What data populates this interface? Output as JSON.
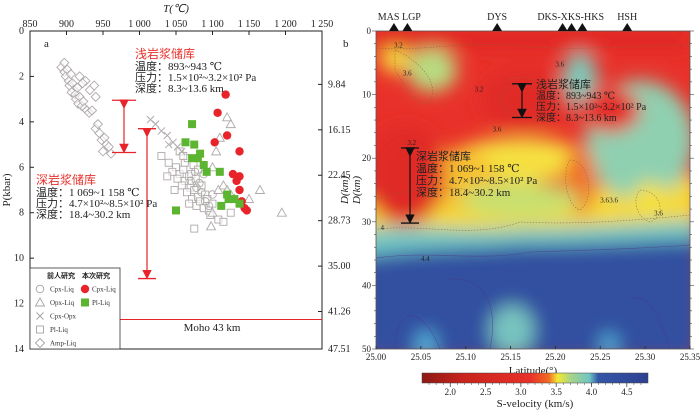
{
  "chart_data": [
    {
      "panel": "a",
      "type": "scatter",
      "title": "",
      "xlabel": "T(℃)",
      "ylabel": "P(kbar)",
      "y2label": "D(km)",
      "xlim": [
        850,
        1250
      ],
      "ylim": [
        0,
        14
      ],
      "x_ticks": [
        "850",
        "900",
        "950",
        "1 000",
        "1 050",
        "1 100",
        "1 150",
        "1 200",
        "1 250"
      ],
      "x_tick_values": [
        850,
        900,
        950,
        1000,
        1050,
        1100,
        1150,
        1200,
        1250
      ],
      "y_ticks": [
        "0",
        "2",
        "4",
        "6",
        "8",
        "10",
        "12",
        "14"
      ],
      "y_tick_values": [
        0,
        2,
        4,
        6,
        8,
        10,
        12,
        14
      ],
      "y2_ticks": [
        "9.84",
        "16.15",
        "22.45",
        "28.73",
        "35.00",
        "41.26",
        "47.51"
      ],
      "y2_tick_values": [
        3,
        5,
        7,
        9,
        11,
        13,
        15
      ],
      "series": [
        {
          "name": "Amp-Liq",
          "group": "前人研究",
          "marker": "diamond",
          "color": "#b0aaaa",
          "points": [
            [
              893,
              1.6
            ],
            [
              897,
              1.8
            ],
            [
              901,
              1.7
            ],
            [
              899,
              2.0
            ],
            [
              903,
              2.2
            ],
            [
              906,
              1.9
            ],
            [
              904,
              2.4
            ],
            [
              908,
              2.3
            ],
            [
              910,
              2.6
            ],
            [
              907,
              2.7
            ],
            [
              912,
              2.8
            ],
            [
              915,
              2.5
            ],
            [
              913,
              3.0
            ],
            [
              918,
              2.9
            ],
            [
              916,
              3.2
            ],
            [
              921,
              3.3
            ],
            [
              923,
              3.1
            ],
            [
              925,
              3.4
            ],
            [
              928,
              3.5
            ],
            [
              931,
              3.6
            ],
            [
              935,
              3.5
            ],
            [
              926,
              2.2
            ],
            [
              932,
              2.6
            ],
            [
              938,
              2.4
            ],
            [
              940,
              2.9
            ],
            [
              918,
              2.0
            ],
            [
              922,
              2.3
            ],
            [
              897,
              1.4
            ],
            [
              940,
              4.3
            ],
            [
              945,
              4.5
            ],
            [
              948,
              4.8
            ],
            [
              952,
              4.7
            ],
            [
              955,
              5.0
            ],
            [
              958,
              5.1
            ],
            [
              950,
              5.3
            ],
            [
              961,
              5.4
            ],
            [
              943,
              4.1
            ]
          ]
        },
        {
          "name": "Pl-Liq",
          "group": "前人研究",
          "marker": "square",
          "color": "#b0aaaa",
          "points": [
            [
              1030,
              5.5
            ],
            [
              1040,
              5.8
            ],
            [
              1050,
              6.0
            ],
            [
              1055,
              6.3
            ],
            [
              1060,
              6.1
            ],
            [
              1062,
              6.6
            ],
            [
              1068,
              6.4
            ],
            [
              1070,
              6.9
            ],
            [
              1058,
              6.8
            ],
            [
              1052,
              6.5
            ],
            [
              1045,
              6.2
            ],
            [
              1065,
              7.1
            ],
            [
              1075,
              7.0
            ],
            [
              1072,
              7.4
            ],
            [
              1080,
              7.3
            ],
            [
              1078,
              7.7
            ],
            [
              1083,
              7.5
            ],
            [
              1068,
              7.6
            ],
            [
              1062,
              5.8
            ],
            [
              1066,
              5.6
            ],
            [
              1074,
              5.9
            ],
            [
              1080,
              6.1
            ],
            [
              1085,
              6.8
            ],
            [
              1090,
              7.2
            ],
            [
              1088,
              7.8
            ],
            [
              1095,
              7.9
            ],
            [
              1093,
              7.4
            ],
            [
              1055,
              5.3
            ],
            [
              1060,
              5.5
            ],
            [
              1071,
              6.3
            ],
            [
              1077,
              6.5
            ],
            [
              1097,
              8.1
            ],
            [
              1100,
              7.6
            ],
            [
              1108,
              8.3
            ],
            [
              1115,
              8.4
            ],
            [
              1125,
              8.0
            ],
            [
              1038,
              6.4
            ],
            [
              1048,
              7.0
            ],
            [
              1075,
              8.7
            ]
          ]
        },
        {
          "name": "Cpx-Liq",
          "group": "前人研究",
          "marker": "circle",
          "color": "#b0aaaa",
          "points": [
            [
              1070,
              6.6
            ],
            [
              1078,
              6.9
            ],
            [
              1085,
              7.1
            ],
            [
              1090,
              7.5
            ],
            [
              1095,
              7.7
            ],
            [
              1082,
              6.7
            ],
            [
              1088,
              6.3
            ],
            [
              1100,
              7.2
            ],
            [
              1076,
              6.2
            ]
          ]
        },
        {
          "name": "Opx-Liq",
          "group": "前人研究",
          "marker": "triangle",
          "color": "#b0aaaa",
          "points": [
            [
              1120,
              3.8
            ],
            [
              1125,
              4.1
            ],
            [
              1110,
              4.7
            ],
            [
              1105,
              5.3
            ],
            [
              1100,
              6.0
            ],
            [
              1115,
              6.8
            ],
            [
              1108,
              7.0
            ],
            [
              1120,
              7.0
            ],
            [
              1130,
              7.4
            ],
            [
              1140,
              7.6
            ],
            [
              1165,
              7.0
            ],
            [
              1150,
              7.4
            ],
            [
              1100,
              8.0
            ],
            [
              1098,
              8.6
            ],
            [
              1195,
              8.0
            ],
            [
              1125,
              7.2
            ]
          ]
        },
        {
          "name": "Cpx-Opx",
          "group": "前人研究",
          "marker": "cross",
          "color": "#b0aaaa",
          "points": [
            [
              1022,
              4.1
            ],
            [
              1030,
              4.4
            ],
            [
              1038,
              4.6
            ],
            [
              1046,
              4.9
            ],
            [
              1052,
              5.1
            ],
            [
              1040,
              5.0
            ],
            [
              1058,
              5.3
            ],
            [
              1015,
              3.9
            ]
          ]
        },
        {
          "name": "Cpx-Liq",
          "group": "本次研究",
          "marker": "circle-filled",
          "color": "#e8232a",
          "points": [
            [
              1118,
              2.8
            ],
            [
              1107,
              3.6
            ],
            [
              1120,
              4.6
            ],
            [
              1103,
              4.9
            ],
            [
              1137,
              5.3
            ],
            [
              1128,
              6.3
            ],
            [
              1137,
              6.4
            ],
            [
              1133,
              6.6
            ],
            [
              1137,
              7.0
            ],
            [
              1140,
              7.5
            ],
            [
              1144,
              7.8
            ],
            [
              1147,
              7.9
            ]
          ]
        },
        {
          "name": "Pl-Liq",
          "group": "本次研究",
          "marker": "square-filled",
          "color": "#5cb531",
          "points": [
            [
              1072,
              4.1
            ],
            [
              1063,
              4.9
            ],
            [
              1075,
              5.0
            ],
            [
              1072,
              5.6
            ],
            [
              1080,
              5.6
            ],
            [
              1083,
              5.4
            ],
            [
              1088,
              5.9
            ],
            [
              1092,
              6.2
            ],
            [
              1110,
              6.2
            ],
            [
              1120,
              7.2
            ],
            [
              1122,
              7.4
            ],
            [
              1130,
              7.4
            ],
            [
              1137,
              7.6
            ],
            [
              1050,
              7.9
            ],
            [
              1112,
              7.7
            ]
          ]
        }
      ],
      "annotations": {
        "panel_label": "a",
        "shallow": {
          "title": "浅岩浆储库",
          "temp": "温度：893~943 ℃",
          "pressure": "压力：1.5×10²~3.2×10² Pa",
          "depth": "深度：8.3~13.6 km",
          "p_range": [
            3.05,
            5.35
          ]
        },
        "deep": {
          "title": "深岩浆储库",
          "temp": "温度：1 069~1 158 ℃",
          "pressure": "压力：4.7×10²~8.5×10² Pa",
          "depth": "深度：18.4~30.2 km",
          "p_range": [
            4.3,
            10.9
          ]
        },
        "moho": {
          "label": "Moho 43 km",
          "p": 12.7
        }
      },
      "legend": {
        "placement": "bottom-left",
        "previous_header": "前人研究",
        "current_header": "本次研究",
        "previous": [
          "Cpx-Liq",
          "Opx-Liq",
          "Cpx-Opx",
          "Pl-Liq",
          "Amp-Liq"
        ],
        "current": [
          "Cpx-Liq",
          "Pl-Liq"
        ]
      }
    },
    {
      "panel": "b",
      "type": "heatmap",
      "title": "",
      "xlabel": "Latitude(°)",
      "ylabel": "D(km)",
      "xlim": [
        25.0,
        25.35
      ],
      "ylim": [
        0,
        50
      ],
      "x_ticks": [
        "25.00",
        "25.05",
        "25.10",
        "25.15",
        "25.20",
        "25.25",
        "25.30",
        "25.35"
      ],
      "x_tick_values": [
        25.0,
        25.05,
        25.1,
        25.15,
        25.2,
        25.25,
        25.3,
        25.35
      ],
      "y_ticks": [
        "0",
        "10",
        "20",
        "30",
        "40",
        "50"
      ],
      "y_tick_values": [
        0,
        10,
        20,
        30,
        40,
        50
      ],
      "stations": [
        {
          "label": "MAS",
          "lat": 25.02
        },
        {
          "label": "LGP",
          "lat": 25.035
        },
        {
          "label": "DYS",
          "lat": 25.135
        },
        {
          "label": "DKS",
          "lat": 25.208
        },
        {
          "label": "XKS",
          "lat": 25.218
        },
        {
          "label": "HKS",
          "lat": 25.23
        },
        {
          "label": "HSH",
          "lat": 25.28
        }
      ],
      "station_labels": [
        "MAS LGP",
        "DYS",
        "DKS-XKS-HKS",
        "HSH"
      ],
      "contour_labels": [
        "3.2",
        "3.6",
        "3.6",
        "3.2",
        "3.6",
        "3.2",
        "3.6",
        "3.6",
        "3.6",
        "4",
        "4.4"
      ],
      "colorbar": {
        "label": "S-velocity (km/s)",
        "range": [
          1.6,
          4.8
        ],
        "ticks": [
          "2.0",
          "2.5",
          "3.0",
          "3.5",
          "4.0",
          "4.5"
        ],
        "tick_values": [
          2.0,
          2.5,
          3.0,
          3.5,
          4.0,
          4.5
        ],
        "colors": [
          "#8c1a16",
          "#c8231c",
          "#e8312a",
          "#f26a22",
          "#f5e832",
          "#a6d38a",
          "#70c6c4",
          "#3556a8",
          "#2e4090"
        ]
      },
      "annotations": {
        "panel_label": "b",
        "shallow": {
          "title": "浅岩浆储库",
          "temp": "温度：893~943 ℃",
          "pressure": "压力：1.5×10²~3.2×10² Pa",
          "depth": "深度：8.3~13.6 km",
          "depth_range": [
            8.3,
            13.6
          ]
        },
        "deep": {
          "title": "深岩浆储库",
          "temp": "温度：1 069~1 158 ℃",
          "pressure": "压力：4.7×10²~8.5×10² Pa",
          "depth": "深度：18.4~30.2 km",
          "depth_range": [
            18.4,
            30.2
          ]
        }
      }
    }
  ]
}
